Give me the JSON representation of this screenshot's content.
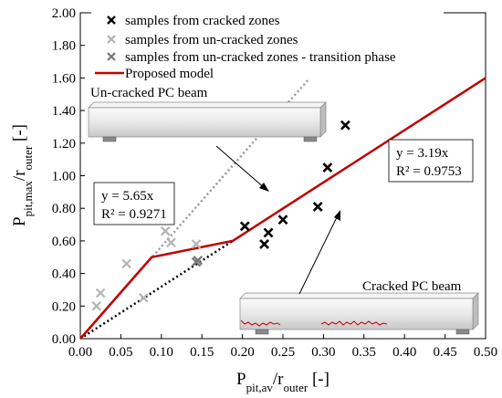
{
  "chart_data": {
    "type": "scatter",
    "xlim": [
      0,
      0.5
    ],
    "ylim": [
      0,
      2.0
    ],
    "x_ticks": [
      "0.00",
      "0.05",
      "0.10",
      "0.15",
      "0.20",
      "0.25",
      "0.30",
      "0.35",
      "0.40",
      "0.45",
      "0.50"
    ],
    "y_ticks": [
      "0.00",
      "0.20",
      "0.40",
      "0.60",
      "0.80",
      "1.00",
      "1.20",
      "1.40",
      "1.60",
      "1.80",
      "2.00"
    ],
    "grid": false,
    "legend_position": "top-center",
    "series": [
      {
        "name": "samples from cracked zones",
        "marker": "x-bold",
        "color": "#000000",
        "points": [
          [
            0.203,
            0.69
          ],
          [
            0.227,
            0.58
          ],
          [
            0.232,
            0.65
          ],
          [
            0.25,
            0.73
          ],
          [
            0.293,
            0.81
          ],
          [
            0.305,
            1.05
          ],
          [
            0.327,
            1.31
          ]
        ]
      },
      {
        "name": "samples from un-cracked zones",
        "marker": "x",
        "color": "#b3b3b3",
        "points": [
          [
            0.02,
            0.2
          ],
          [
            0.025,
            0.28
          ],
          [
            0.057,
            0.46
          ],
          [
            0.078,
            0.25
          ],
          [
            0.105,
            0.66
          ],
          [
            0.112,
            0.59
          ],
          [
            0.143,
            0.58
          ]
        ]
      },
      {
        "name": "samples from un-cracked zones - transition phase",
        "marker": "x",
        "color": "#777777",
        "points": [
          [
            0.143,
            0.47
          ],
          [
            0.145,
            0.48
          ]
        ]
      },
      {
        "name": "Proposed model",
        "type": "line",
        "color": "#c00000",
        "points": [
          [
            0,
            0
          ],
          [
            0.088,
            0.5
          ],
          [
            0.188,
            0.6
          ],
          [
            0.5,
            1.6
          ]
        ]
      }
    ],
    "trendlines": [
      {
        "equation": "y = 5.65x",
        "r2": "R² = 0.9271",
        "slope": 5.65,
        "color": "#999999",
        "x_range": [
          0,
          0.283
        ]
      },
      {
        "equation": "y = 3.19x",
        "r2": "R² = 0.9753",
        "slope": 3.19,
        "color": "#000000",
        "x_range": [
          0,
          0.188
        ]
      }
    ],
    "annotations": {
      "uncracked_label": "Un-cracked PC beam",
      "cracked_label": "Cracked PC beam"
    },
    "xlabel": {
      "main": "P",
      "sub": "pit,av",
      "sep": "/r",
      "sub2": "outer",
      "unit": " [-]"
    },
    "ylabel": {
      "main": "P",
      "sub": "pit,max",
      "sep": "/r",
      "sub2": "outer",
      "unit": " [-]"
    }
  }
}
